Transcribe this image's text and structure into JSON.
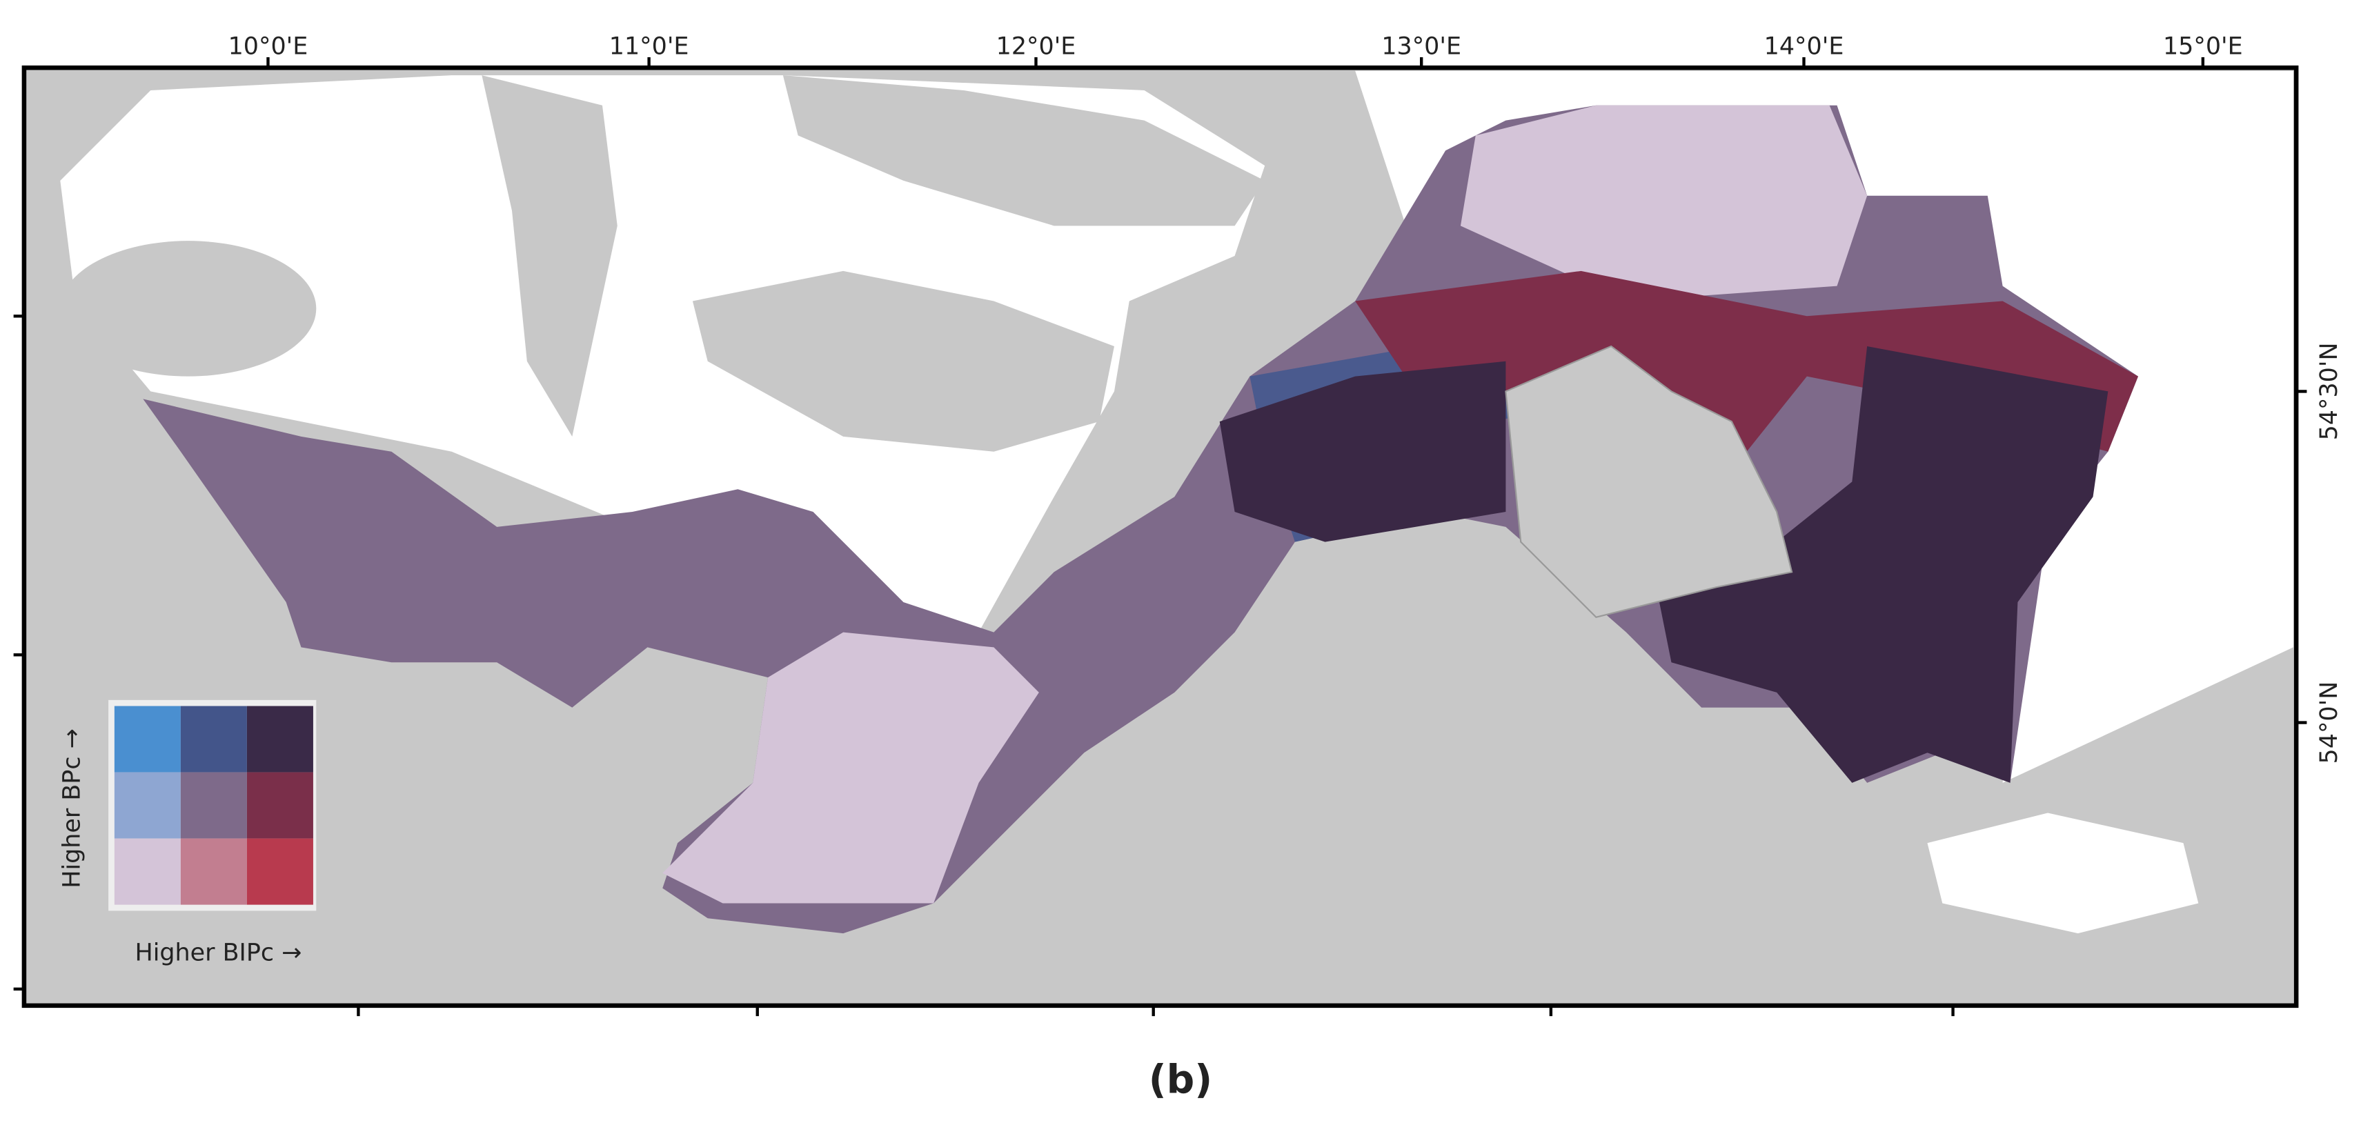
{
  "map": {
    "lon_labels": [
      "10°0'E",
      "11°0'E",
      "12°0'E",
      "13°0'E",
      "14°0'E",
      "15°0'E"
    ],
    "lat_labels": [
      "54°30'N",
      "54°0'N"
    ],
    "legend": {
      "y_label": "Higher BPc →",
      "x_label": "Higher BIPc →",
      "colors": [
        [
          "#4a8fd0",
          "#43558a",
          "#3a2a48"
        ],
        [
          "#8ea6d2",
          "#7e6a8a",
          "#7a2f4a"
        ],
        [
          "#d4c4d8",
          "#c27e90",
          "#b83a4e"
        ]
      ]
    },
    "caption": "(b)"
  }
}
